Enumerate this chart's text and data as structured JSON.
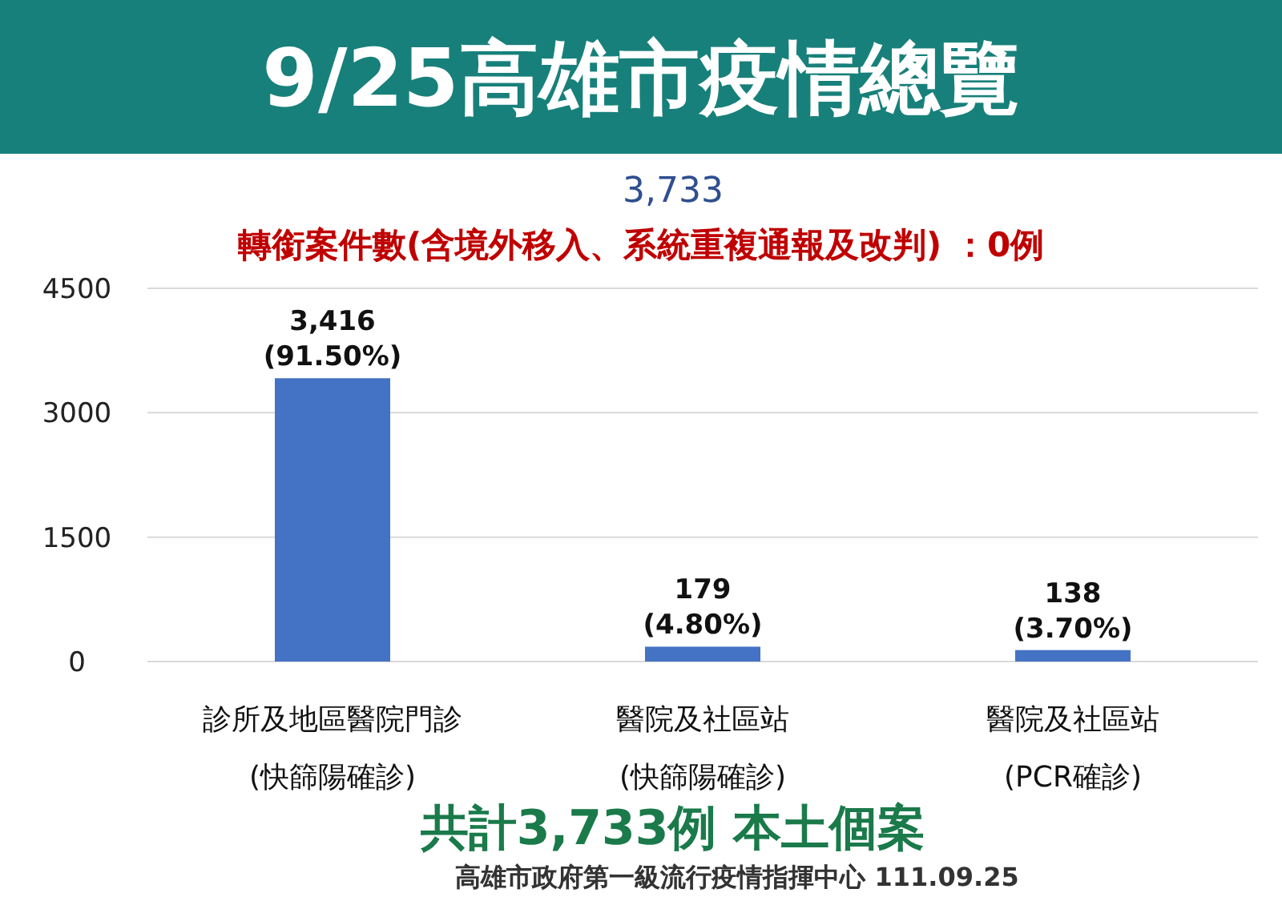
{
  "chart_data": {
    "type": "bar",
    "title": "9/25高雄市疫情總覽",
    "subtitle": "3,733",
    "annotations": [
      "轉銜案件數(含境外移入、系統重複通報及改判) ：0例",
      "共計3,733例 本土個案",
      "高雄市政府第一級流行疫情指揮中心 111.09.25"
    ],
    "categories": [
      "診所及地區醫院門診\n(快篩陽確診)",
      "醫院及社區站\n(快篩陽確診)",
      "醫院及社區站\n(PCR確診)"
    ],
    "values": [
      3416,
      179,
      138
    ],
    "color": "#4472c4",
    "value_labels": [
      "3,416\n(91.50%)",
      "179\n(4.80%)",
      "138\n(3.70%)"
    ],
    "ylim": [
      0,
      4500
    ],
    "yticks": [
      0,
      1500,
      3000,
      4500
    ],
    "grid": "y"
  }
}
